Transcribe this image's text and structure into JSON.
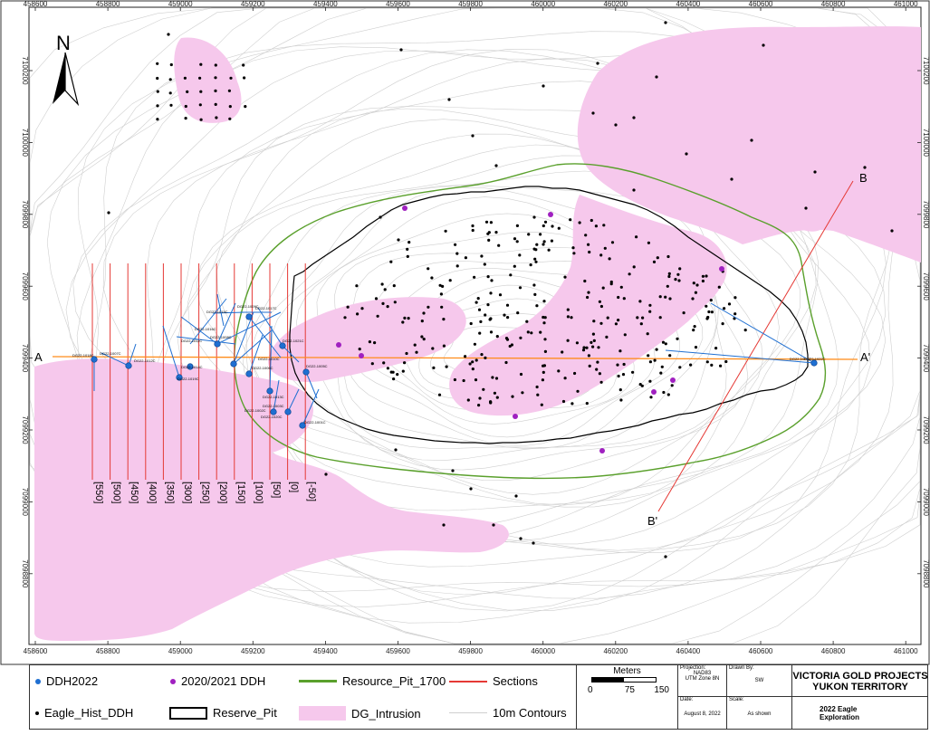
{
  "map": {
    "north_label": "N",
    "x_ticks": [
      "458600",
      "458800",
      "459000",
      "459200",
      "459400",
      "459600",
      "459800",
      "460000",
      "460200",
      "460400",
      "460600",
      "460800",
      "461000"
    ],
    "y_ticks": [
      "7100200",
      "7100000",
      "7099800",
      "7099600",
      "7099400",
      "7099200",
      "7099000",
      "7098800"
    ],
    "section_a_left": "A",
    "section_a_right": "A'",
    "section_b_top": "B",
    "section_b_bottom": "B'",
    "section_offsets": [
      "[550]",
      "[500]",
      "[450]",
      "[400]",
      "[350]",
      "[300]",
      "[250]",
      "[200]",
      "[150]",
      "[100]",
      "[50]",
      "[0]",
      "[-50]"
    ],
    "hole_labels": [
      "DG22-1018C",
      "DG22-1007C",
      "DG22-1012C",
      "DG22-1014C",
      "DG22-1019C",
      "DG22-1016C",
      "DG22-1015C",
      "DG22-1011C",
      "DG22-1008C",
      "DG22-1009C",
      "DG22-1017C",
      "DG22-1010C",
      "DG22-1006C",
      "DG22-1013C",
      "DG22-1020C",
      "DG22-1021C",
      "DG22-1003C",
      "DG22-1002C",
      "DG22-1001C",
      "DG22-1005C",
      "DG22-1004C",
      "DG22-1022C"
    ],
    "colors": {
      "intrusion": "#f6c8ec",
      "resource_pit": "#5aa02c",
      "reserve_pit": "#000000",
      "sections": "#e53935",
      "ddh2022": "#1f6fd1",
      "ddh2020": "#a020c0",
      "contours": "#cfcfcf",
      "section_a": "#ff8c1a"
    }
  },
  "legend": {
    "ddh2022": "DDH2022",
    "ddh2020": "2020/2021 DDH",
    "resource_pit": "Resource_Pit_1700",
    "sections": "Sections",
    "eagle_hist": "Eagle_Hist_DDH",
    "reserve_pit": "Reserve_Pit",
    "dg_intrusion": "DG_Intrusion",
    "contours": "10m Contours"
  },
  "scalebar": {
    "title": "Meters",
    "ticks": [
      "0",
      "75",
      "150"
    ]
  },
  "title_block": {
    "projection_label": "Projection:",
    "projection_value_1": "NAD83",
    "projection_value_2": "UTM Zone 8N",
    "drawn_by_label": "Drawn By:",
    "drawn_by_value": "SW",
    "date_label": "Date:",
    "date_value": "August 8, 2022",
    "scale_label": "Scale:",
    "scale_value": "As shown",
    "company_1": "VICTORIA GOLD PROJECTS",
    "company_2": "YUKON TERRITORY",
    "drawing_1": "2022 Eagle",
    "drawing_2": "Exploration"
  }
}
